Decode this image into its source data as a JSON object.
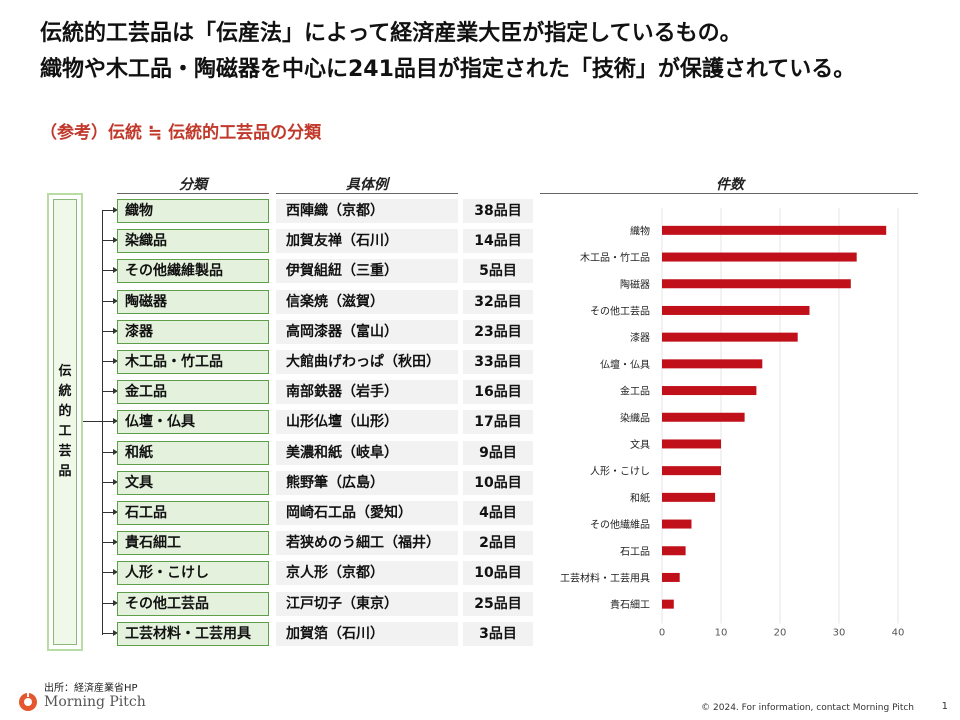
{
  "headline": {
    "line1": "伝統的工芸品は「伝産法」によって経済産業大臣が指定しているもの。",
    "line2": "織物や木工品・陶磁器を中心に241品目が指定された「技術」が保護されている。"
  },
  "subtitle": "（参考）伝統 ≒ 伝統的工芸品の分類",
  "columns": {
    "category": "分類",
    "example": "具体例",
    "count": "件数"
  },
  "root_label": "伝統的工芸品",
  "rows": [
    {
      "category": "織物",
      "example": "西陣織（京都）",
      "count": "38品目"
    },
    {
      "category": "染織品",
      "example": "加賀友禅（石川）",
      "count": "14品目"
    },
    {
      "category": "その他繊維製品",
      "example": "伊賀組紐（三重）",
      "count": "5品目"
    },
    {
      "category": "陶磁器",
      "example": "信楽焼（滋賀）",
      "count": "32品目"
    },
    {
      "category": "漆器",
      "example": "高岡漆器（富山）",
      "count": "23品目"
    },
    {
      "category": "木工品・竹工品",
      "example": "大館曲げわっぱ（秋田）",
      "count": "33品目"
    },
    {
      "category": "金工品",
      "example": "南部鉄器（岩手）",
      "count": "16品目"
    },
    {
      "category": "仏壇・仏具",
      "example": "山形仏壇（山形）",
      "count": "17品目"
    },
    {
      "category": "和紙",
      "example": "美濃和紙（岐阜）",
      "count": "9品目"
    },
    {
      "category": "文具",
      "example": "熊野筆（広島）",
      "count": "10品目"
    },
    {
      "category": "石工品",
      "example": "岡崎石工品（愛知）",
      "count": "4品目"
    },
    {
      "category": "貴石細工",
      "example": "若狭めのう細工（福井）",
      "count": "2品目"
    },
    {
      "category": "人形・こけし",
      "example": "京人形（京都）",
      "count": "10品目"
    },
    {
      "category": "その他工芸品",
      "example": "江戸切子（東京）",
      "count": "25品目"
    },
    {
      "category": "工芸材料・工芸用具",
      "example": "加賀箔（石川）",
      "count": "3品目"
    }
  ],
  "chart_data": {
    "type": "bar",
    "orientation": "horizontal",
    "categories": [
      "織物",
      "木工品・竹工品",
      "陶磁器",
      "その他工芸品",
      "漆器",
      "仏壇・仏具",
      "金工品",
      "染織品",
      "文具",
      "人形・こけし",
      "和紙",
      "その他繊維品",
      "石工品",
      "工芸材料・工芸用具",
      "貴石細工"
    ],
    "values": [
      38,
      33,
      32,
      25,
      23,
      17,
      16,
      14,
      10,
      10,
      9,
      5,
      4,
      3,
      2
    ],
    "xlim": [
      0,
      40
    ],
    "xticks": [
      0,
      10,
      20,
      30,
      40
    ],
    "bar_color": "#c0111b",
    "grid": "vertical"
  },
  "source": "出所：経済産業省HP",
  "logo_text": "Morning Pitch",
  "footer": "© 2024. For information, contact Morning Pitch",
  "page_number": "1",
  "colors": {
    "accent": "#c0392b",
    "category_fill": "#e4f1dc",
    "category_border": "#5f9f4a",
    "bar": "#c0111b"
  }
}
